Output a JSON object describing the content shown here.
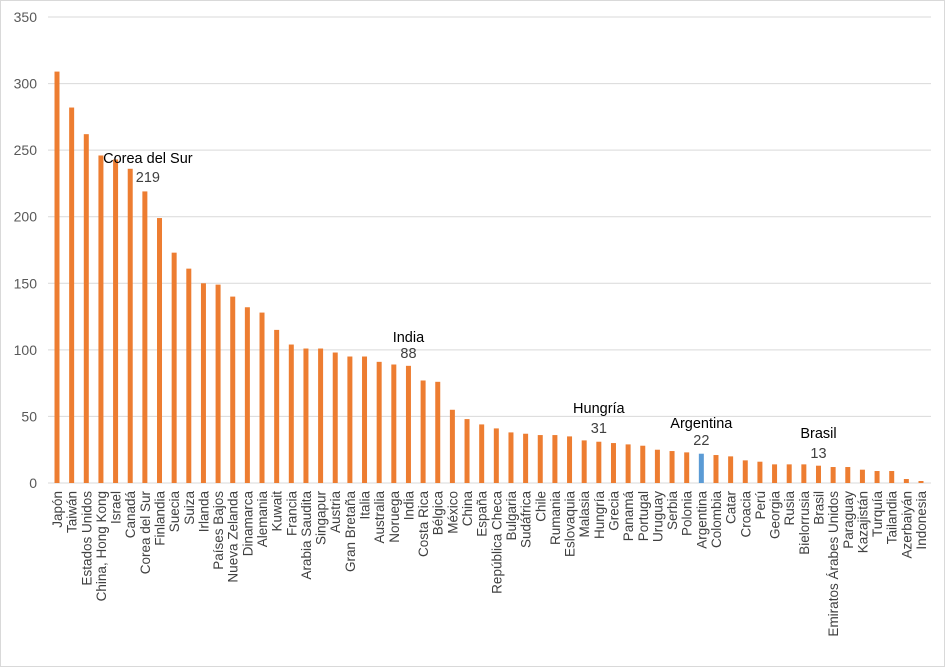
{
  "chart_data": {
    "type": "bar",
    "title": "",
    "xlabel": "",
    "ylabel": "",
    "ylim": [
      0,
      350
    ],
    "yticks": [
      0,
      50,
      100,
      150,
      200,
      250,
      300,
      350
    ],
    "grid": true,
    "legend": "none",
    "colors": {
      "default": "#ED7D31",
      "highlight": "#5B9BD5",
      "grid": "#d9d9d9"
    },
    "highlight_category": "Argentina",
    "categories": [
      "Japón",
      "Taiwán",
      "Estados Unidos",
      "China, Hong Kong",
      "Israel",
      "Canadá",
      "Corea del Sur",
      "Finlandia",
      "Suecia",
      "Suiza",
      "Irlanda",
      "Países Bajos",
      "Nueva Zelanda",
      "Dinamarca",
      "Alemania",
      "Kuwait",
      "Francia",
      "Arabia Saudita",
      "Singapur",
      "Austria",
      "Gran Bretaña",
      "Italia",
      "Australia",
      "Noruega",
      "India",
      "Costa Rica",
      "Bélgica",
      "México",
      "China",
      "España",
      "República Checa",
      "Bulgaria",
      "Sudáfrica",
      "Chile",
      "Rumania",
      "Eslovaquia",
      "Malasia",
      "Hungría",
      "Grecia",
      "Panamá",
      "Portugal",
      "Uruguay",
      "Serbia",
      "Polonia",
      "Argentina",
      "Colombia",
      "Catar",
      "Croacia",
      "Perú",
      "Georgia",
      "Rusia",
      "Bielorrusia",
      "Brasil",
      "Emiratos Árabes Unidos",
      "Paraguay",
      "Kazajistán",
      "Turquía",
      "Tailandia",
      "Azerbaiyán",
      "Indonesia"
    ],
    "values": [
      309,
      282,
      262,
      246,
      243,
      236,
      219,
      199,
      173,
      161,
      150,
      149,
      140,
      132,
      128,
      115,
      104,
      101,
      101,
      98,
      95,
      95,
      91,
      89,
      88,
      77,
      76,
      55,
      48,
      44,
      41,
      38,
      37,
      36,
      36,
      35,
      32,
      31,
      30,
      29,
      28,
      25,
      24,
      23,
      22,
      21,
      20,
      17,
      16,
      14,
      14,
      14,
      13,
      12,
      12,
      10,
      9,
      9,
      3,
      1.5
    ],
    "annotations": [
      {
        "category": "Corea del Sur",
        "label": "Corea del Sur",
        "value_label": "219"
      },
      {
        "category": "India",
        "label": "India",
        "value_label": "88"
      },
      {
        "category": "Hungría",
        "label": "Hungría",
        "value_label": "31"
      },
      {
        "category": "Argentina",
        "label": "Argentina",
        "value_label": "22"
      },
      {
        "category": "Brasil",
        "label": "Brasil",
        "value_label": "13"
      }
    ]
  }
}
